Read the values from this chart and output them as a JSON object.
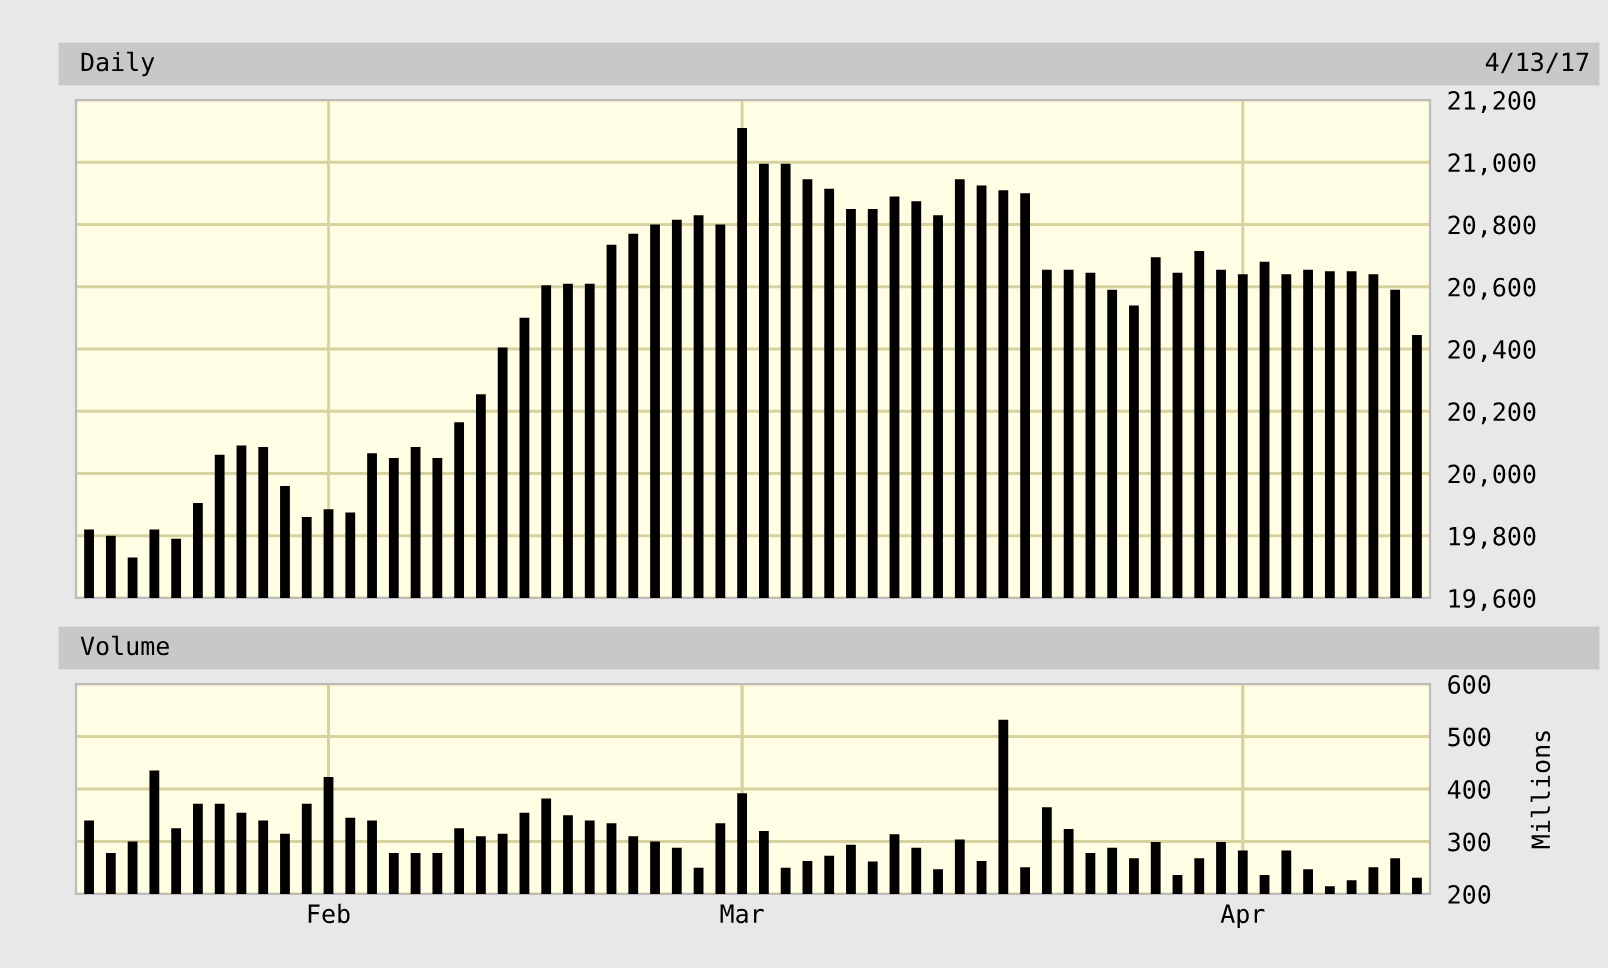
{
  "chart_data": [
    {
      "type": "bar",
      "title": "Daily",
      "annotations": [
        "4/13/17"
      ],
      "categories": [
        null,
        null,
        null,
        null,
        null,
        null,
        null,
        null,
        null,
        null,
        null,
        null,
        null,
        null,
        null,
        null,
        null,
        null,
        null,
        null,
        null,
        null,
        null,
        null,
        null,
        null,
        null,
        null,
        null,
        null,
        null,
        null,
        null,
        null,
        null,
        null,
        null,
        null,
        null,
        null,
        null,
        null,
        null,
        null,
        null,
        null,
        null,
        null,
        null,
        null,
        null,
        null,
        null,
        null,
        null,
        null,
        null,
        null,
        null,
        null,
        null,
        null
      ],
      "series": [
        {
          "color": "#000000",
          "values": [
            19820,
            19800,
            19730,
            19820,
            19790,
            19905,
            20060,
            20090,
            20085,
            19960,
            19860,
            19885,
            19875,
            20065,
            20050,
            20085,
            20050,
            20165,
            20255,
            20405,
            20500,
            20605,
            20610,
            20610,
            20735,
            20770,
            20800,
            20815,
            20830,
            20800,
            21110,
            20995,
            20995,
            20945,
            20915,
            20850,
            20850,
            20890,
            20875,
            20830,
            20945,
            20925,
            20910,
            20900,
            20655,
            20655,
            20645,
            20590,
            20540,
            20695,
            20645,
            20715,
            20655,
            20640,
            20680,
            20640,
            20655,
            20650,
            20650,
            20640,
            20590,
            20445
          ]
        }
      ],
      "ylim": [
        19600,
        21200
      ],
      "yticks": [
        {
          "value": 19600,
          "label": "19,600"
        },
        {
          "value": 19800,
          "label": "19,800"
        },
        {
          "value": 20000,
          "label": "20,000"
        },
        {
          "value": 20200,
          "label": "20,200"
        },
        {
          "value": 20400,
          "label": "20,400"
        },
        {
          "value": 20600,
          "label": "20,600"
        },
        {
          "value": 20800,
          "label": "20,800"
        },
        {
          "value": 21000,
          "label": "21,000"
        },
        {
          "value": 21200,
          "label": "21,200"
        }
      ],
      "grid": true,
      "tick_labels": "y"
    },
    {
      "type": "bar",
      "title": "Volume",
      "ylabel": "Millions",
      "categories": [
        null,
        null,
        null,
        null,
        null,
        null,
        null,
        null,
        null,
        null,
        null,
        "Feb",
        null,
        null,
        null,
        null,
        null,
        null,
        null,
        null,
        null,
        null,
        null,
        null,
        null,
        null,
        null,
        null,
        null,
        null,
        "Mar",
        null,
        null,
        null,
        null,
        null,
        null,
        null,
        null,
        null,
        null,
        null,
        null,
        null,
        null,
        null,
        null,
        null,
        null,
        null,
        null,
        null,
        null,
        "Apr",
        null,
        null,
        null,
        null,
        null,
        null,
        null,
        null
      ],
      "series": [
        {
          "color": "#000000",
          "values": [
            340,
            278,
            300,
            435,
            325,
            372,
            372,
            355,
            340,
            315,
            372,
            423,
            345,
            340,
            278,
            278,
            278,
            325,
            310,
            315,
            355,
            382,
            350,
            340,
            335,
            310,
            300,
            288,
            250,
            335,
            392,
            320,
            250,
            263,
            273,
            294,
            262,
            314,
            288,
            247,
            304,
            263,
            532,
            251,
            365,
            324,
            278,
            288,
            268,
            299,
            236,
            268,
            299,
            283,
            236,
            283,
            247,
            215,
            226,
            251,
            268,
            231
          ]
        }
      ],
      "ylim": [
        200,
        600
      ],
      "yticks": [
        200,
        300,
        400,
        500,
        600
      ],
      "grid": true
    }
  ]
}
